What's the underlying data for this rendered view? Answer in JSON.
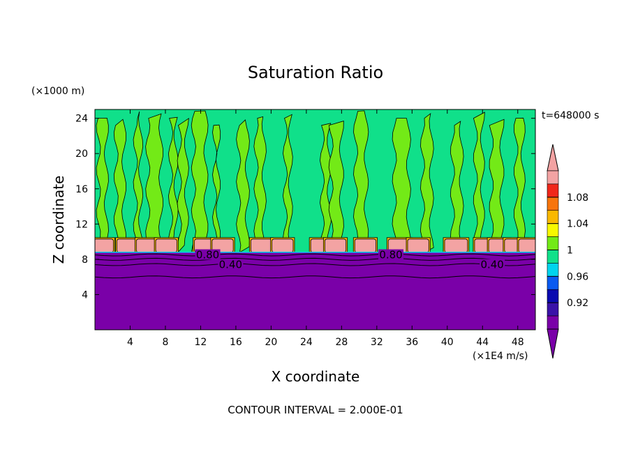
{
  "chart_data": {
    "type": "heatmap",
    "title": "Saturation Ratio",
    "xlabel": "X coordinate",
    "ylabel": "Z coordinate",
    "x_unit": "(×1E4 m/s)",
    "y_unit": "(×1000 m)",
    "time_label": "t=648000 s",
    "footer": "CONTOUR INTERVAL = 2.000E-01",
    "xlim": [
      0,
      50
    ],
    "ylim": [
      0,
      25
    ],
    "x_ticks": [
      "4",
      "8",
      "12",
      "16",
      "20",
      "24",
      "28",
      "32",
      "36",
      "40",
      "44",
      "48"
    ],
    "y_ticks": [
      "4",
      "8",
      "12",
      "16",
      "20",
      "24"
    ],
    "contour_labels": [
      {
        "text": "0.80",
        "x": 12.8,
        "y": 8.5
      },
      {
        "text": "0.40",
        "x": 15.4,
        "y": 7.4
      },
      {
        "text": "0.80",
        "x": 33.6,
        "y": 8.5
      },
      {
        "text": "0.40",
        "x": 45.1,
        "y": 7.4
      }
    ],
    "colorbar": {
      "labels": [
        "1.08",
        "1.04",
        "1",
        "0.96",
        "0.92"
      ],
      "colors": [
        "#7a00a8",
        "#3a12a8",
        "#0a0ab0",
        "#0a5af0",
        "#00d4ee",
        "#10e08a",
        "#73ea17",
        "#f8f800",
        "#f9b800",
        "#f7750c",
        "#f0271a",
        "#f3a3a3"
      ],
      "min_extension": "#7a00a8",
      "max_extension": "#f3a3a3"
    },
    "fields": {
      "low_layer_color": "#7a00a8",
      "upper_base_color": "#10e08a",
      "upper_plume_color": "#73ea17",
      "cloud_color": "#f3a3a3",
      "boundary_color": "#00d4ee",
      "layer_top_z": 8.8,
      "cloud_top_z": 10.3
    }
  }
}
